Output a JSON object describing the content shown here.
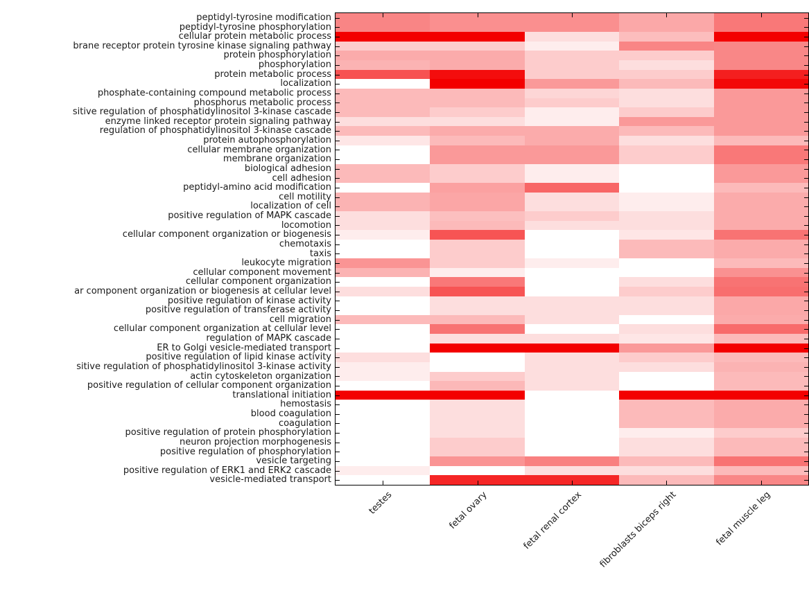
{
  "figure": {
    "background": "#ffffff",
    "text_color": "#1a1a1a",
    "frame_color": "#000000"
  },
  "chart_data": {
    "type": "heatmap",
    "title": "",
    "xlabel": "",
    "ylabel": "",
    "grid": false,
    "legend": false,
    "x_tick_rotation_deg": 45,
    "ticks": "inward on all four sides",
    "colormap": {
      "low_color": "#ffffff",
      "high_color": "#f30000",
      "scale_note": "values are color intensities read from pixels: 0 = white, 1 = saturated red"
    },
    "categories": [
      "testes",
      "fetal ovary",
      "fetal renal cortex",
      "fibroblasts biceps right",
      "fetal muscle leg"
    ],
    "rows": [
      "peptidyl-tyrosine modification",
      "peptidyl-tyrosine phosphorylation",
      "cellular protein metabolic process",
      "brane receptor protein tyrosine kinase signaling pathway",
      "protein phosphorylation",
      "phosphorylation",
      "protein metabolic process",
      "localization",
      "phosphate-containing compound metabolic process",
      "phosphorus metabolic process",
      "sitive regulation of phosphatidylinositol 3-kinase cascade",
      "enzyme linked receptor protein signaling pathway",
      "regulation of phosphatidylinositol 3-kinase cascade",
      "protein autophosphorylation",
      "cellular membrane organization",
      "membrane organization",
      "biological adhesion",
      "cell adhesion",
      "peptidyl-amino acid modification",
      "cell motility",
      "localization of cell",
      "positive regulation of MAPK cascade",
      "locomotion",
      "cellular component organization or biogenesis",
      "chemotaxis",
      "taxis",
      "leukocyte migration",
      "cellular component movement",
      "cellular component organization",
      "ar component organization or biogenesis at cellular level",
      "positive regulation of kinase activity",
      "positive regulation of transferase activity",
      "cell migration",
      "cellular component organization at cellular level",
      "regulation of MAPK cascade",
      "ER to Golgi vesicle-mediated transport",
      "positive regulation of lipid kinase activity",
      "sitive regulation of phosphatidylinositol 3-kinase activity",
      "actin cytoskeleton organization",
      "positive regulation of cellular component organization",
      "translational initiation",
      "hemostasis",
      "blood coagulation",
      "coagulation",
      "positive regulation of protein phosphorylation",
      "neuron projection morphogenesis",
      "positive regulation of phosphorylation",
      "vesicle targeting",
      "positive regulation of ERK1 and ERK2 cascade",
      "vesicle-mediated transport"
    ],
    "values": [
      [
        0.48,
        0.44,
        0.44,
        0.34,
        0.53
      ],
      [
        0.48,
        0.44,
        0.44,
        0.34,
        0.53
      ],
      [
        1.0,
        1.0,
        0.13,
        0.26,
        1.0
      ],
      [
        0.2,
        0.2,
        0.07,
        0.48,
        0.47
      ],
      [
        0.33,
        0.33,
        0.2,
        0.2,
        0.47
      ],
      [
        0.3,
        0.33,
        0.2,
        0.13,
        0.47
      ],
      [
        0.68,
        0.95,
        0.2,
        0.2,
        0.88
      ],
      [
        0.0,
        1.0,
        0.4,
        0.27,
        0.97
      ],
      [
        0.27,
        0.27,
        0.16,
        0.13,
        0.4
      ],
      [
        0.27,
        0.27,
        0.2,
        0.13,
        0.4
      ],
      [
        0.27,
        0.2,
        0.07,
        0.2,
        0.4
      ],
      [
        0.13,
        0.13,
        0.07,
        0.4,
        0.4
      ],
      [
        0.27,
        0.33,
        0.33,
        0.27,
        0.4
      ],
      [
        0.1,
        0.27,
        0.33,
        0.13,
        0.27
      ],
      [
        0.0,
        0.4,
        0.4,
        0.2,
        0.53
      ],
      [
        0.0,
        0.4,
        0.4,
        0.2,
        0.53
      ],
      [
        0.27,
        0.2,
        0.07,
        0.0,
        0.4
      ],
      [
        0.27,
        0.2,
        0.07,
        0.0,
        0.4
      ],
      [
        0.0,
        0.37,
        0.6,
        0.0,
        0.27
      ],
      [
        0.3,
        0.35,
        0.13,
        0.07,
        0.33
      ],
      [
        0.3,
        0.35,
        0.13,
        0.07,
        0.33
      ],
      [
        0.13,
        0.25,
        0.2,
        0.13,
        0.33
      ],
      [
        0.13,
        0.27,
        0.13,
        0.13,
        0.33
      ],
      [
        0.07,
        0.67,
        0.0,
        0.1,
        0.55
      ],
      [
        0.0,
        0.2,
        0.0,
        0.27,
        0.33
      ],
      [
        0.0,
        0.2,
        0.0,
        0.27,
        0.33
      ],
      [
        0.42,
        0.2,
        0.07,
        0.0,
        0.27
      ],
      [
        0.3,
        0.07,
        0.0,
        0.0,
        0.43
      ],
      [
        0.0,
        0.53,
        0.0,
        0.13,
        0.55
      ],
      [
        0.13,
        0.67,
        0.0,
        0.2,
        0.57
      ],
      [
        0.0,
        0.13,
        0.13,
        0.13,
        0.34
      ],
      [
        0.0,
        0.13,
        0.13,
        0.13,
        0.34
      ],
      [
        0.27,
        0.27,
        0.13,
        0.0,
        0.33
      ],
      [
        0.0,
        0.55,
        0.0,
        0.13,
        0.58
      ],
      [
        0.0,
        0.13,
        0.13,
        0.1,
        0.27
      ],
      [
        0.0,
        1.0,
        1.0,
        0.4,
        1.0
      ],
      [
        0.13,
        0.0,
        0.13,
        0.2,
        0.27
      ],
      [
        0.07,
        0.0,
        0.13,
        0.13,
        0.3
      ],
      [
        0.07,
        0.2,
        0.13,
        0.0,
        0.27
      ],
      [
        0.0,
        0.28,
        0.13,
        0.0,
        0.27
      ],
      [
        1.0,
        1.0,
        0.0,
        1.0,
        1.0
      ],
      [
        0.0,
        0.13,
        0.0,
        0.27,
        0.33
      ],
      [
        0.0,
        0.13,
        0.0,
        0.27,
        0.33
      ],
      [
        0.0,
        0.13,
        0.0,
        0.27,
        0.33
      ],
      [
        0.0,
        0.13,
        0.0,
        0.07,
        0.2
      ],
      [
        0.0,
        0.2,
        0.0,
        0.13,
        0.27
      ],
      [
        0.0,
        0.2,
        0.0,
        0.13,
        0.27
      ],
      [
        0.0,
        0.42,
        0.5,
        0.27,
        0.55
      ],
      [
        0.07,
        0.0,
        0.13,
        0.13,
        0.27
      ],
      [
        0.0,
        0.85,
        0.85,
        0.27,
        0.47
      ]
    ]
  }
}
